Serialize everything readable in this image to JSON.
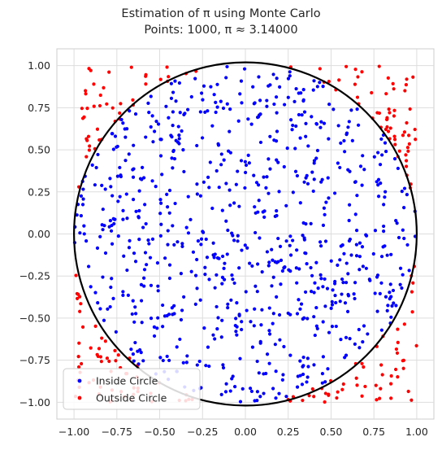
{
  "chart_data": {
    "type": "scatter",
    "title_line1": "Estimation of π using Monte Carlo",
    "title_line2": "Points: 1000, π ≈ 3.14000",
    "num_points": 1000,
    "pi_estimate": 3.14,
    "xlim": [
      -1.1,
      1.1
    ],
    "ylim": [
      -1.1,
      1.1
    ],
    "xticks": [
      -1.0,
      -0.75,
      -0.5,
      -0.25,
      0.0,
      0.25,
      0.5,
      0.75,
      1.0
    ],
    "yticks": [
      -1.0,
      -0.75,
      -0.5,
      -0.25,
      0.0,
      0.25,
      0.5,
      0.75,
      1.0
    ],
    "xtick_labels": [
      "−1.00",
      "−0.75",
      "−0.50",
      "−0.25",
      "0.00",
      "0.25",
      "0.50",
      "0.75",
      "1.00"
    ],
    "ytick_labels": [
      "−1.00",
      "−0.75",
      "−0.50",
      "−0.25",
      "0.00",
      "0.25",
      "0.50",
      "0.75",
      "1.00"
    ],
    "grid": true,
    "legend_position": "lower-left",
    "circle": {
      "center": [
        0,
        0
      ],
      "radius": 1.0,
      "color": "#000000"
    },
    "series": [
      {
        "name": "Inside Circle",
        "color": "#0000ff",
        "count": 785,
        "region": "inside unit circle"
      },
      {
        "name": "Outside Circle",
        "color": "#ff0000",
        "count": 215,
        "region": "outside unit circle within square [-1,1]x[-1,1]"
      }
    ]
  }
}
